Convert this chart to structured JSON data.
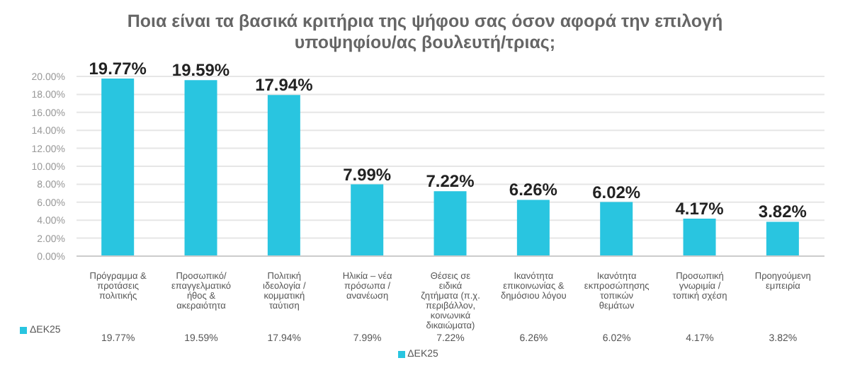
{
  "chart_data": {
    "type": "bar",
    "title": "Ποια είναι τα βασικά κριτήρια της ψήφου σας όσον αφορά την επιλογή υποψηφίου/ας βουλευτή/τριας;",
    "categories": [
      "Πρόγραμμα & προτάσεις πολιτικής",
      "Προσωπικό/ επαγγελματικό ήθος & ακεραιότητα",
      "Πολιτική ιδεολογία / κομματική ταύτιση",
      "Ηλικία – νέα πρόσωπα / ανανέωση",
      "Θέσεις σε ειδικά ζητήματα (π.χ. περιβάλλον, κοινωνικά δικαιώματα)",
      "Ικανότητα επικοινωνίας & δημόσιου λόγου",
      "Ικανότητα εκπροσώπησης τοπικών θεμάτων",
      "Προσωπική γνωριμία / τοπική σχέση",
      "Προηγούμενη εμπειρία"
    ],
    "series": [
      {
        "name": "ΔΕΚ25",
        "color": "#29c5e0",
        "values": [
          19.77,
          19.59,
          17.94,
          7.99,
          7.22,
          6.26,
          6.02,
          4.17,
          3.82
        ],
        "value_labels": [
          "19.77%",
          "19.59%",
          "17.94%",
          "7.99%",
          "7.22%",
          "6.26%",
          "6.02%",
          "4.17%",
          "3.82%"
        ]
      }
    ],
    "ylim": [
      0,
      20
    ],
    "yticks": [
      {
        "value": 0,
        "label": "0.00%"
      },
      {
        "value": 2,
        "label": "2.00%"
      },
      {
        "value": 4,
        "label": "4.00%"
      },
      {
        "value": 6,
        "label": "6.00%"
      },
      {
        "value": 8,
        "label": "8.00%"
      },
      {
        "value": 10,
        "label": "10.00%"
      },
      {
        "value": 12,
        "label": "12.00%"
      },
      {
        "value": 14,
        "label": "14.00%"
      },
      {
        "value": 16,
        "label": "16.00%"
      },
      {
        "value": 18,
        "label": "18.00%"
      },
      {
        "value": 20,
        "label": "20.00%"
      }
    ],
    "grid": "y",
    "legend": "bottom"
  }
}
